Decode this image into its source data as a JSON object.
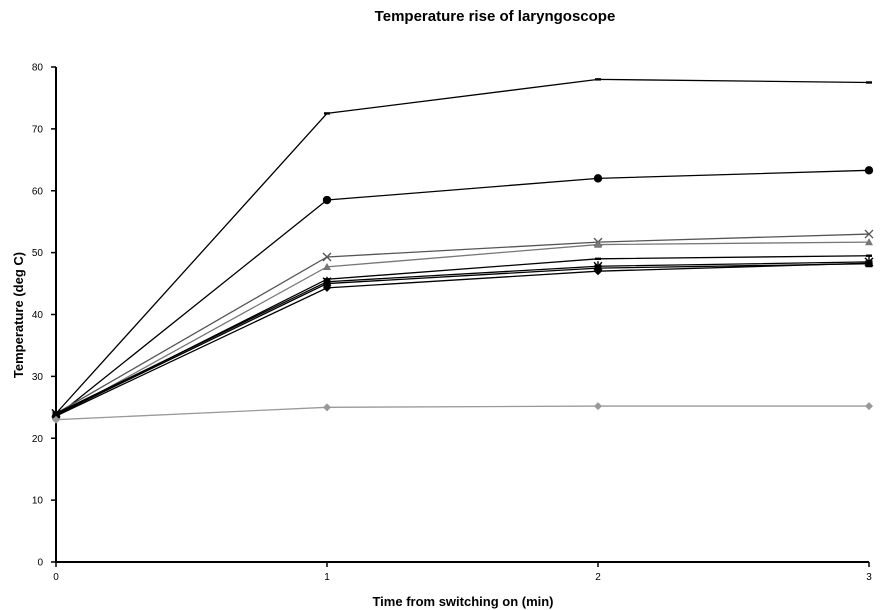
{
  "chart_data": {
    "type": "line",
    "title": "Temperature rise of laryngoscope",
    "xlabel": "Time from switching on (min)",
    "ylabel": "Temperature (deg C)",
    "x": [
      0,
      1,
      2,
      3
    ],
    "xlim": [
      0,
      3
    ],
    "ylim": [
      0,
      80
    ],
    "xticks": [
      "0",
      "1",
      "2",
      "3"
    ],
    "yticks": [
      "0",
      "10",
      "20",
      "30",
      "40",
      "50",
      "60",
      "70",
      "80"
    ],
    "grid": false,
    "legend": "none",
    "series": [
      {
        "values": [
          24,
          72.5,
          78,
          77.5
        ],
        "marker": "dash",
        "color": "#000000"
      },
      {
        "values": [
          23.5,
          58.5,
          62,
          63.3
        ],
        "marker": "circle",
        "color": "#000000"
      },
      {
        "values": [
          24,
          49.3,
          51.7,
          53
        ],
        "marker": "x",
        "color": "#555555"
      },
      {
        "values": [
          23.5,
          47.7,
          51.3,
          51.7
        ],
        "marker": "triangle",
        "color": "#777777"
      },
      {
        "values": [
          23.7,
          45.7,
          49,
          49.5
        ],
        "marker": "dash",
        "color": "#000000"
      },
      {
        "values": [
          24,
          45.3,
          47.8,
          48.5
        ],
        "marker": "star",
        "color": "#000000"
      },
      {
        "values": [
          23.8,
          45,
          47.5,
          48.2
        ],
        "marker": "square",
        "color": "#000000"
      },
      {
        "values": [
          23.6,
          44.3,
          47,
          48.3
        ],
        "marker": "diamond",
        "color": "#000000"
      },
      {
        "values": [
          23,
          25,
          25.2,
          25.2
        ],
        "marker": "diamond",
        "color": "#999999"
      }
    ]
  }
}
